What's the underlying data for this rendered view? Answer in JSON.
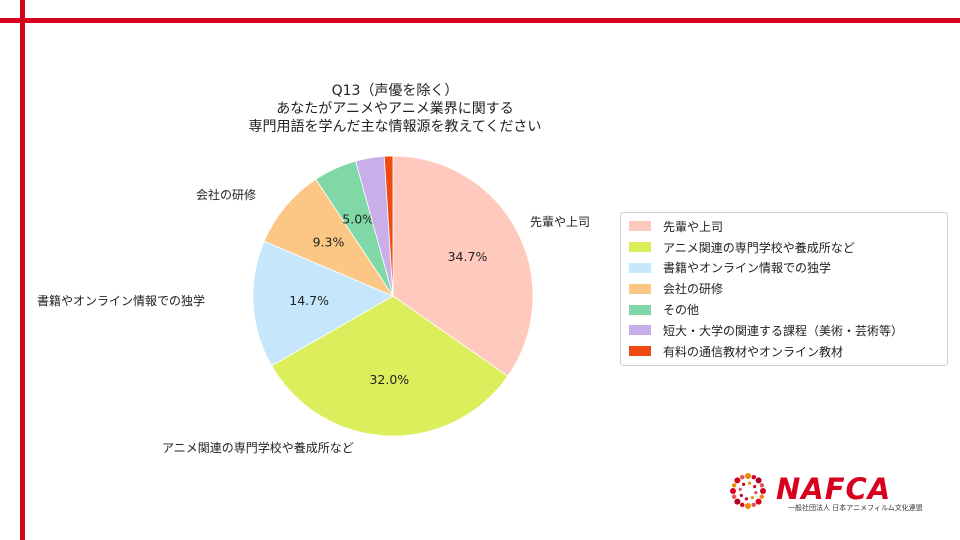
{
  "title_lines": [
    "Q13（声優を除く）",
    "あなたがアニメやアニメ業界に関する",
    "専門用語を学んだ主な情報源を教えてください"
  ],
  "chart_data": {
    "type": "pie",
    "start_angle_deg": 90,
    "direction": "clockwise",
    "slices": [
      {
        "label": "先輩や上司",
        "value": 34.7,
        "pct_label": "34.7%",
        "color": "#ffc9bd",
        "show_pct": true,
        "show_ext": true
      },
      {
        "label": "アニメ関連の専門学校や養成所など",
        "value": 32.0,
        "pct_label": "32.0%",
        "color": "#dcee5c",
        "show_pct": true,
        "show_ext": true
      },
      {
        "label": "書籍やオンライン情報での独学",
        "value": 14.7,
        "pct_label": "14.7%",
        "color": "#c5e6fb",
        "show_pct": true,
        "show_ext": true
      },
      {
        "label": "会社の研修",
        "value": 9.3,
        "pct_label": "9.3%",
        "color": "#fcc784",
        "show_pct": true,
        "show_ext": true
      },
      {
        "label": "その他",
        "value": 5.0,
        "pct_label": "5.0%",
        "color": "#7fd8a5",
        "show_pct": true,
        "show_ext": false
      },
      {
        "label": "短大・大学の関連する課程（美術・芸術等）",
        "value": 3.3,
        "pct_label": "",
        "color": "#c9aeea",
        "show_pct": false,
        "show_ext": false
      },
      {
        "label": "有料の通信教材やオンライン教材",
        "value": 1.0,
        "pct_label": "",
        "color": "#f04a13",
        "show_pct": false,
        "show_ext": false
      }
    ],
    "legend_placement": "right"
  },
  "logo": {
    "word": "NAFCA",
    "sub": "一般社団法人 日本アニメフィルム文化連盟",
    "accent": "#d7001e"
  }
}
